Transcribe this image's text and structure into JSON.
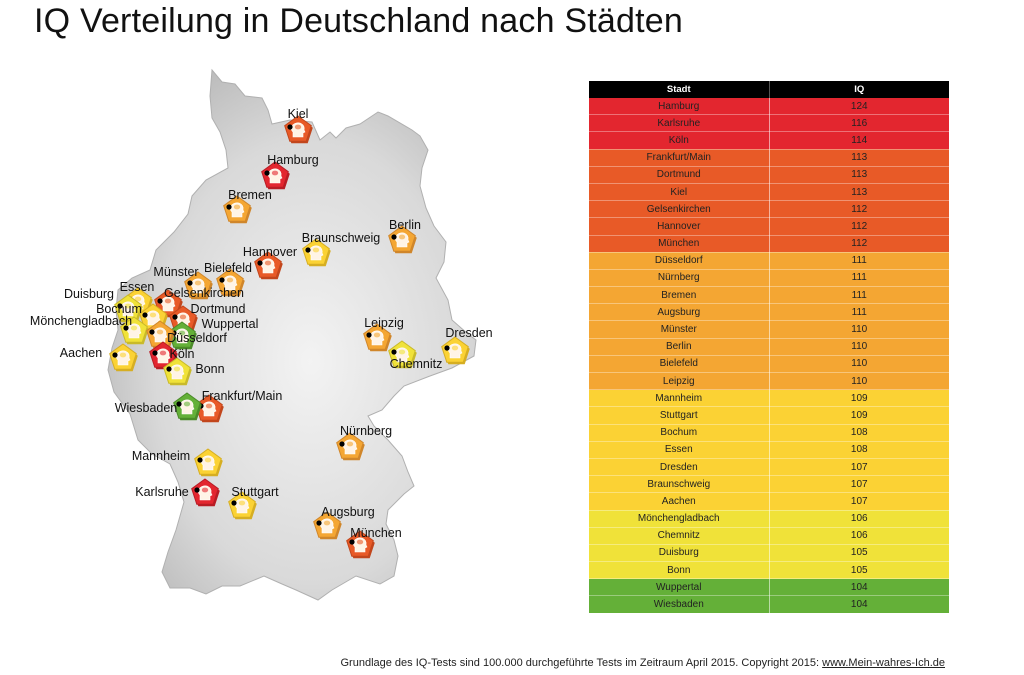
{
  "title": "IQ Verteilung in Deutschland nach Städten",
  "colors": {
    "red": "#e3262f",
    "dark_orange": "#e85a27",
    "orange": "#f4a633",
    "yellow": "#fbd234",
    "light_yellow": "#f0e239",
    "green": "#64b038",
    "map_fill": "#d2d2d2",
    "table_header": "#000000"
  },
  "table": {
    "header_city": "Stadt",
    "header_iq": "IQ",
    "rows": [
      {
        "city": "Hamburg",
        "iq": "124",
        "tier": "red"
      },
      {
        "city": "Karlsruhe",
        "iq": "116",
        "tier": "red"
      },
      {
        "city": "Köln",
        "iq": "114",
        "tier": "red"
      },
      {
        "city": "Frankfurt/Main",
        "iq": "113",
        "tier": "dark_orange"
      },
      {
        "city": "Dortmund",
        "iq": "113",
        "tier": "dark_orange"
      },
      {
        "city": "Kiel",
        "iq": "113",
        "tier": "dark_orange"
      },
      {
        "city": "Gelsenkirchen",
        "iq": "112",
        "tier": "dark_orange"
      },
      {
        "city": "Hannover",
        "iq": "112",
        "tier": "dark_orange"
      },
      {
        "city": "München",
        "iq": "112",
        "tier": "dark_orange"
      },
      {
        "city": "Düsseldorf",
        "iq": "111",
        "tier": "orange"
      },
      {
        "city": "Nürnberg",
        "iq": "111",
        "tier": "orange"
      },
      {
        "city": "Bremen",
        "iq": "111",
        "tier": "orange"
      },
      {
        "city": "Augsburg",
        "iq": "111",
        "tier": "orange"
      },
      {
        "city": "Münster",
        "iq": "110",
        "tier": "orange"
      },
      {
        "city": "Berlin",
        "iq": "110",
        "tier": "orange"
      },
      {
        "city": "Bielefeld",
        "iq": "110",
        "tier": "orange"
      },
      {
        "city": "Leipzig",
        "iq": "110",
        "tier": "orange"
      },
      {
        "city": "Mannheim",
        "iq": "109",
        "tier": "yellow"
      },
      {
        "city": "Stuttgart",
        "iq": "109",
        "tier": "yellow"
      },
      {
        "city": "Bochum",
        "iq": "108",
        "tier": "yellow"
      },
      {
        "city": "Essen",
        "iq": "108",
        "tier": "yellow"
      },
      {
        "city": "Dresden",
        "iq": "107",
        "tier": "yellow"
      },
      {
        "city": "Braunschweig",
        "iq": "107",
        "tier": "yellow"
      },
      {
        "city": "Aachen",
        "iq": "107",
        "tier": "yellow"
      },
      {
        "city": "Mönchengladbach",
        "iq": "106",
        "tier": "light_yellow"
      },
      {
        "city": "Chemnitz",
        "iq": "106",
        "tier": "light_yellow"
      },
      {
        "city": "Duisburg",
        "iq": "105",
        "tier": "light_yellow"
      },
      {
        "city": "Bonn",
        "iq": "105",
        "tier": "light_yellow"
      },
      {
        "city": "Wuppertal",
        "iq": "104",
        "tier": "green"
      },
      {
        "city": "Wiesbaden",
        "iq": "104",
        "tier": "green"
      }
    ]
  },
  "map": {
    "markers_icon": "brain-head-icon",
    "cities": [
      {
        "name": "Kiel",
        "tier": "dark_orange"
      },
      {
        "name": "Hamburg",
        "tier": "red"
      },
      {
        "name": "Bremen",
        "tier": "orange"
      },
      {
        "name": "Berlin",
        "tier": "orange"
      },
      {
        "name": "Braunschweig",
        "tier": "yellow"
      },
      {
        "name": "Hannover",
        "tier": "dark_orange"
      },
      {
        "name": "Bielefeld",
        "tier": "orange"
      },
      {
        "name": "Münster",
        "tier": "orange"
      },
      {
        "name": "Gelsenkirchen",
        "tier": "dark_orange"
      },
      {
        "name": "Essen",
        "tier": "yellow"
      },
      {
        "name": "Duisburg",
        "tier": "light_yellow"
      },
      {
        "name": "Bochum",
        "tier": "yellow"
      },
      {
        "name": "Dortmund",
        "tier": "dark_orange"
      },
      {
        "name": "Mönchengladbach",
        "tier": "light_yellow"
      },
      {
        "name": "Wuppertal",
        "tier": "green"
      },
      {
        "name": "Düsseldorf",
        "tier": "orange"
      },
      {
        "name": "Aachen",
        "tier": "yellow"
      },
      {
        "name": "Köln",
        "tier": "red"
      },
      {
        "name": "Bonn",
        "tier": "light_yellow"
      },
      {
        "name": "Leipzig",
        "tier": "orange"
      },
      {
        "name": "Dresden",
        "tier": "yellow"
      },
      {
        "name": "Chemnitz",
        "tier": "light_yellow"
      },
      {
        "name": "Frankfurt/Main",
        "tier": "dark_orange"
      },
      {
        "name": "Wiesbaden",
        "tier": "green"
      },
      {
        "name": "Nürnberg",
        "tier": "orange"
      },
      {
        "name": "Mannheim",
        "tier": "yellow"
      },
      {
        "name": "Karlsruhe",
        "tier": "red"
      },
      {
        "name": "Stuttgart",
        "tier": "yellow"
      },
      {
        "name": "Augsburg",
        "tier": "orange"
      },
      {
        "name": "München",
        "tier": "dark_orange"
      }
    ]
  },
  "footer": {
    "text": "Grundlage des IQ-Tests sind 100.000 durchgeführte Tests im Zeitraum April 2015. Copyright 2015: ",
    "link_text": "www.Mein-wahres-Ich.de"
  }
}
